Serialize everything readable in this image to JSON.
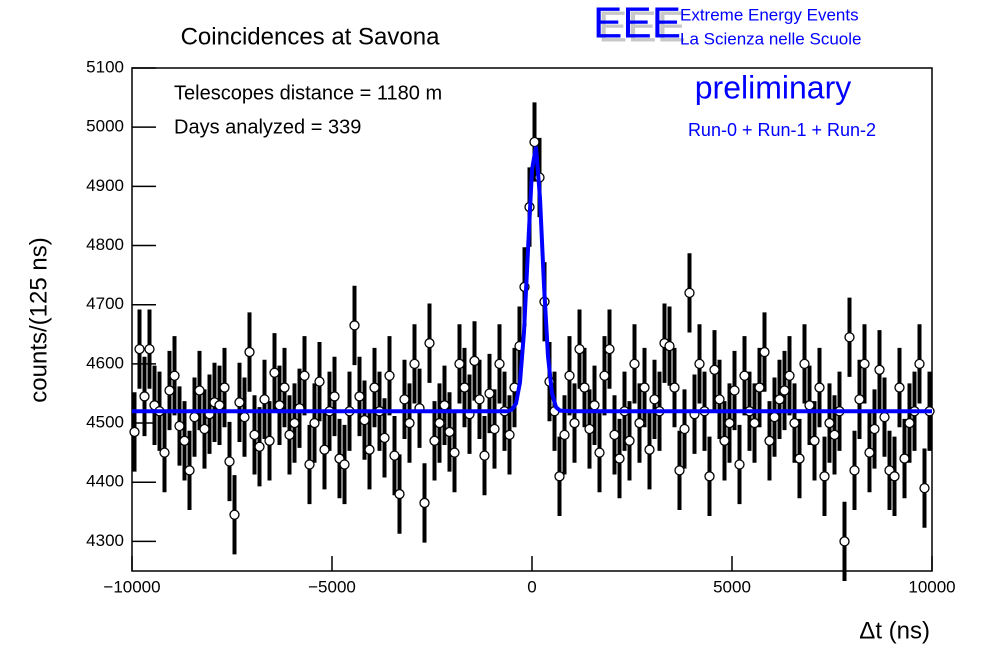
{
  "chart_data": {
    "type": "scatter",
    "title": "Coincidences at Savona",
    "xlabel": "Δt (ns)",
    "ylabel": "counts/(125 ns)",
    "annotations": [
      "Telescopes distance = 1180 m",
      "Days analyzed = 339",
      "preliminary",
      "Run-0 + Run-1 + Run-2"
    ],
    "logo": {
      "mark": "EEE",
      "line1": "Extreme Energy Events",
      "line2": "La Scienza nelle Scuole"
    },
    "xlim": [
      -10000,
      10000
    ],
    "xticks": [
      {
        "value": -10000,
        "label": "−10000"
      },
      {
        "value": -5000,
        "label": "−5000"
      },
      0,
      5000,
      10000
    ],
    "ylim": [
      4250,
      5100
    ],
    "yticks": [
      4300,
      4400,
      4500,
      4600,
      4700,
      4800,
      4900,
      5000,
      5100
    ],
    "series": [
      {
        "type": "errorbar",
        "color": "#000000",
        "error": 67,
        "x": [
          -9937.5,
          -9812.5,
          -9687.5,
          -9562.5,
          -9437.5,
          -9312.5,
          -9187.5,
          -9062.5,
          -8937.5,
          -8812.5,
          -8687.5,
          -8562.5,
          -8437.5,
          -8312.5,
          -8187.5,
          -8062.5,
          -7937.5,
          -7812.5,
          -7687.5,
          -7562.5,
          -7437.5,
          -7312.5,
          -7187.5,
          -7062.5,
          -6937.5,
          -6812.5,
          -6687.5,
          -6562.5,
          -6437.5,
          -6312.5,
          -6187.5,
          -6062.5,
          -5937.5,
          -5812.5,
          -5687.5,
          -5562.5,
          -5437.5,
          -5312.5,
          -5187.5,
          -5062.5,
          -4937.5,
          -4812.5,
          -4687.5,
          -4562.5,
          -4437.5,
          -4312.5,
          -4187.5,
          -4062.5,
          -3937.5,
          -3812.5,
          -3687.5,
          -3562.5,
          -3437.5,
          -3312.5,
          -3187.5,
          -3062.5,
          -2937.5,
          -2812.5,
          -2687.5,
          -2562.5,
          -2437.5,
          -2312.5,
          -2187.5,
          -2062.5,
          -1937.5,
          -1812.5,
          -1687.5,
          -1562.5,
          -1437.5,
          -1312.5,
          -1187.5,
          -1062.5,
          -937.5,
          -812.5,
          -687.5,
          -562.5,
          -437.5,
          -312.5,
          -187.5,
          -62.5,
          62.5,
          187.5,
          312.5,
          437.5,
          562.5,
          687.5,
          812.5,
          937.5,
          1062.5,
          1187.5,
          1312.5,
          1437.5,
          1562.5,
          1687.5,
          1812.5,
          1937.5,
          2062.5,
          2187.5,
          2312.5,
          2437.5,
          2562.5,
          2687.5,
          2812.5,
          2937.5,
          3062.5,
          3187.5,
          3312.5,
          3437.5,
          3562.5,
          3687.5,
          3812.5,
          3937.5,
          4062.5,
          4187.5,
          4312.5,
          4437.5,
          4562.5,
          4687.5,
          4812.5,
          4937.5,
          5062.5,
          5187.5,
          5312.5,
          5437.5,
          5562.5,
          5687.5,
          5812.5,
          5937.5,
          6062.5,
          6187.5,
          6312.5,
          6437.5,
          6562.5,
          6687.5,
          6812.5,
          6937.5,
          7062.5,
          7187.5,
          7312.5,
          7437.5,
          7562.5,
          7687.5,
          7812.5,
          7937.5,
          8062.5,
          8187.5,
          8312.5,
          8437.5,
          8562.5,
          8687.5,
          8812.5,
          8937.5,
          9062.5,
          9187.5,
          9312.5,
          9437.5,
          9562.5,
          9687.5,
          9812.5,
          9937.5
        ],
        "values": [
          4485,
          4625,
          4545,
          4625,
          4530,
          4520,
          4450,
          4555,
          4580,
          4495,
          4470,
          4420,
          4510,
          4555,
          4490,
          4515,
          4535,
          4530,
          4560,
          4435,
          4345,
          4535,
          4510,
          4620,
          4480,
          4460,
          4540,
          4470,
          4585,
          4530,
          4560,
          4480,
          4500,
          4525,
          4580,
          4430,
          4500,
          4570,
          4455,
          4520,
          4545,
          4440,
          4430,
          4520,
          4665,
          4545,
          4505,
          4455,
          4560,
          4520,
          4475,
          4580,
          4445,
          4380,
          4540,
          4500,
          4600,
          4525,
          4365,
          4635,
          4470,
          4500,
          4530,
          4485,
          4450,
          4600,
          4560,
          4515,
          4605,
          4540,
          4445,
          4550,
          4490,
          4600,
          4520,
          4480,
          4560,
          4630,
          4730,
          4865,
          4975,
          4915,
          4705,
          4570,
          4520,
          4410,
          4480,
          4580,
          4500,
          4625,
          4560,
          4490,
          4530,
          4450,
          4580,
          4625,
          4480,
          4440,
          4520,
          4470,
          4600,
          4500,
          4560,
          4455,
          4540,
          4520,
          4635,
          4630,
          4560,
          4420,
          4490,
          4720,
          4515,
          4600,
          4520,
          4410,
          4590,
          4540,
          4470,
          4500,
          4555,
          4430,
          4580,
          4520,
          4500,
          4560,
          4620,
          4470,
          4510,
          4540,
          4555,
          4580,
          4500,
          4440,
          4600,
          4530,
          4470,
          4560,
          4410,
          4500,
          4480,
          4520,
          4300,
          4645,
          4420,
          4540,
          4600,
          4450,
          4490,
          4590,
          4510,
          4420,
          4410,
          4560,
          4440,
          4500,
          4520,
          4600,
          4390,
          4520
        ]
      },
      {
        "type": "line",
        "color": "#0000ff",
        "x": [
          -10000,
          -1000,
          -600,
          -500,
          -400,
          -300,
          -200,
          -100,
          0,
          100,
          200,
          300,
          400,
          500,
          600,
          700,
          1000,
          10000
        ],
        "values": [
          4520,
          4520,
          4520,
          4523,
          4533,
          4569,
          4654,
          4793,
          4928,
          4967,
          4880,
          4733,
          4613,
          4550,
          4527,
          4521,
          4520,
          4520
        ]
      }
    ]
  }
}
